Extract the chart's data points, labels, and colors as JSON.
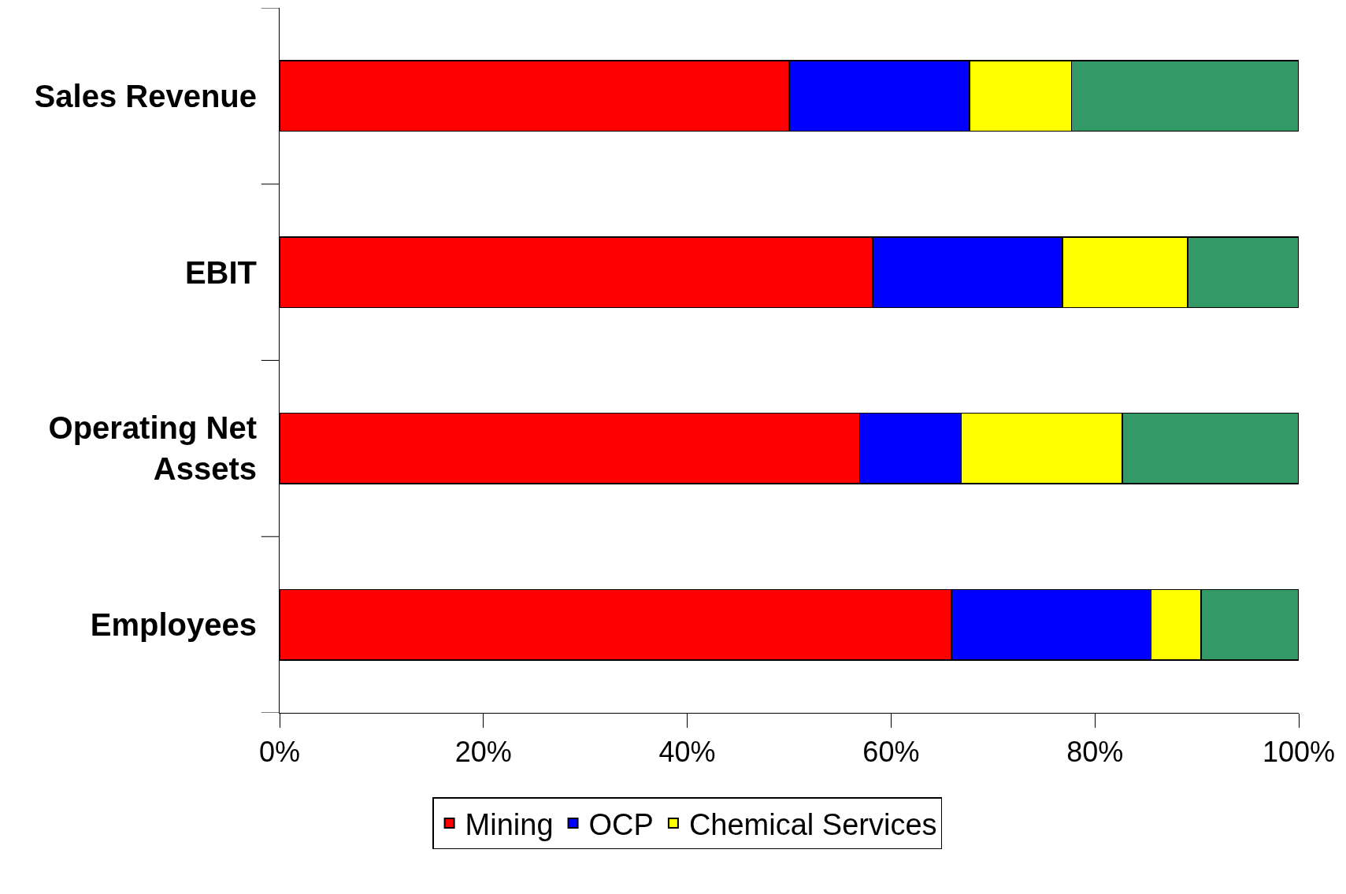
{
  "chart_data": {
    "type": "bar",
    "orientation": "horizontal",
    "stacked": true,
    "categories": [
      "Sales Revenue",
      "EBIT",
      "Operating Net\nAssets",
      "Employees"
    ],
    "series": [
      {
        "name": "Mining",
        "color": "#ff0000",
        "values": [
          50.0,
          58.2,
          56.9,
          65.9
        ]
      },
      {
        "name": "OCP",
        "color": "#0000ff",
        "values": [
          17.7,
          18.6,
          10.0,
          19.6
        ]
      },
      {
        "name": "Chemical Services",
        "color": "#ffff00",
        "values": [
          10.0,
          12.3,
          15.8,
          4.9
        ]
      },
      {
        "color": "#339966",
        "values": [
          22.3,
          10.9,
          17.3,
          9.6
        ]
      }
    ],
    "xlim": [
      0,
      100
    ],
    "xticks": [
      {
        "value": 0,
        "label": "0%"
      },
      {
        "value": 20,
        "label": "20%"
      },
      {
        "value": 40,
        "label": "40%"
      },
      {
        "value": 60,
        "label": "60%"
      },
      {
        "value": 80,
        "label": "80%"
      },
      {
        "value": 100,
        "label": "100%"
      }
    ],
    "legend": "bottom"
  }
}
